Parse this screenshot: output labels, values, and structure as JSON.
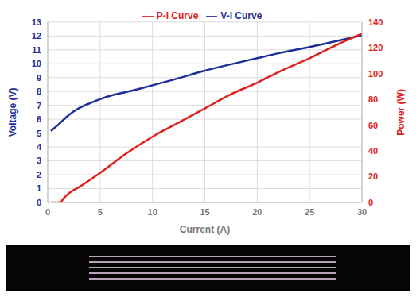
{
  "chart_data": {
    "type": "line",
    "x_label": "Current (A)",
    "y_label": "Voltage (V)",
    "y2_label": "Power (W)",
    "xlim": [
      0,
      30
    ],
    "xticks": [
      0,
      5,
      10,
      15,
      20,
      25,
      30
    ],
    "ylim": [
      0,
      13
    ],
    "yticks": [
      0,
      1,
      2,
      3,
      4,
      5,
      6,
      7,
      8,
      9,
      10,
      11,
      12,
      13
    ],
    "y2lim": [
      0,
      140
    ],
    "y2ticks": [
      0,
      20,
      40,
      60,
      80,
      100,
      120,
      140
    ],
    "grid": true,
    "legend": "top",
    "series": [
      {
        "name": "V-I Curve",
        "color": "#1f2f9a",
        "x": [
          0.3,
          1,
          2,
          3,
          4,
          5,
          6,
          8,
          10,
          12,
          15,
          18,
          20,
          22,
          25,
          28,
          30
        ],
        "values": [
          5.15,
          5.6,
          6.3,
          6.8,
          7.15,
          7.45,
          7.7,
          8.05,
          8.45,
          8.85,
          9.5,
          10.05,
          10.4,
          10.75,
          11.2,
          11.7,
          12.05
        ]
      },
      {
        "name": "P-I Curve",
        "color": "#e0201b",
        "axis": "y2",
        "x": [
          0.3,
          1.2,
          1.5,
          2,
          3,
          5,
          7.5,
          10,
          12.5,
          15,
          17.5,
          20,
          22.5,
          25,
          27.5,
          30
        ],
        "values": [
          0,
          0,
          3,
          7,
          12,
          23,
          38,
          51,
          62,
          73,
          84,
          93,
          103,
          112,
          122,
          131
        ]
      }
    ]
  }
}
